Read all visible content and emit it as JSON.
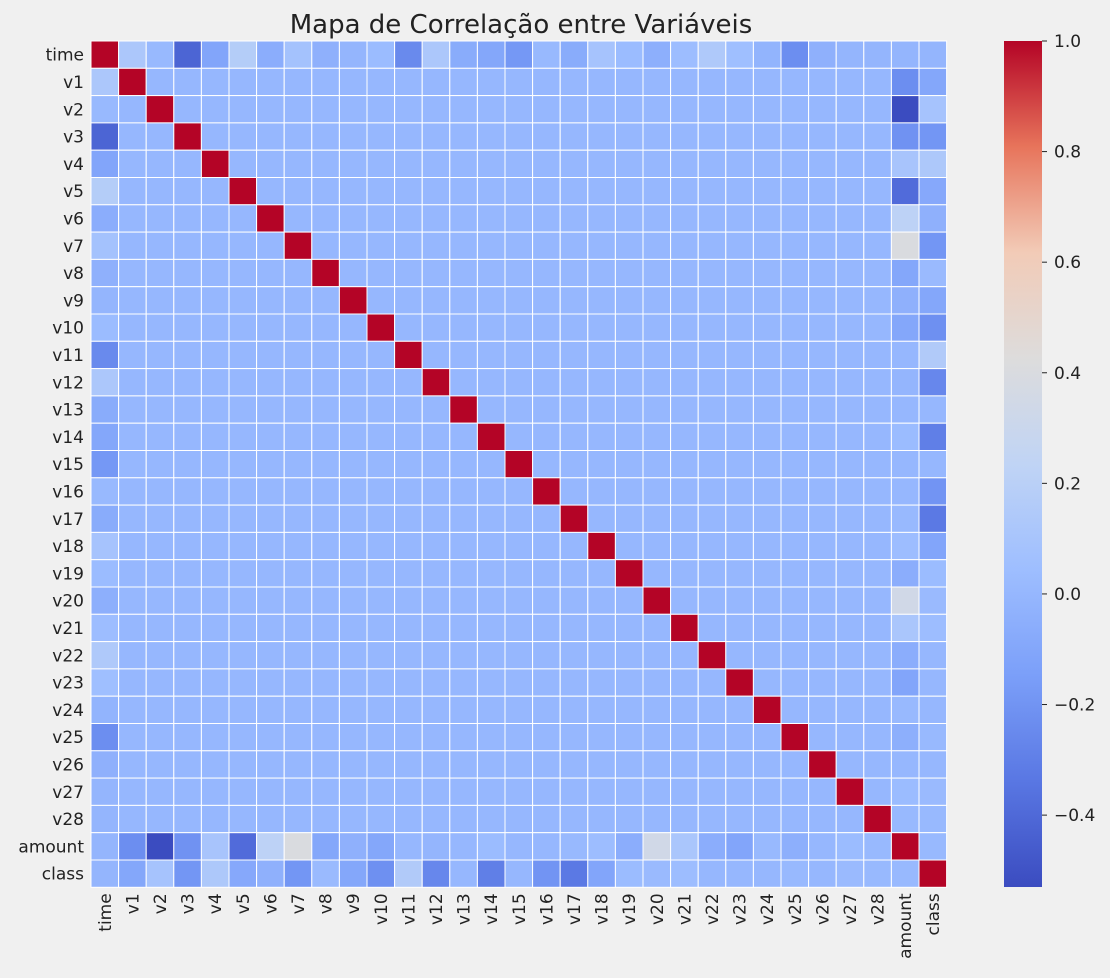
{
  "chart_data": {
    "type": "heatmap",
    "title": "Mapa de Correlação entre Variáveis",
    "xlabel": "",
    "ylabel": "",
    "labels": [
      "time",
      "v1",
      "v2",
      "v3",
      "v4",
      "v5",
      "v6",
      "v7",
      "v8",
      "v9",
      "v10",
      "v11",
      "v12",
      "v13",
      "v14",
      "v15",
      "v16",
      "v17",
      "v18",
      "v19",
      "v20",
      "v21",
      "v22",
      "v23",
      "v24",
      "v25",
      "v26",
      "v27",
      "v28",
      "amount",
      "class"
    ],
    "colormap": "coolwarm",
    "vmin": -0.53,
    "vmax": 1.0,
    "colorbar_ticks": [
      "1.0",
      "0.8",
      "0.6",
      "0.4",
      "0.2",
      "0.0",
      "−0.2",
      "−0.4"
    ],
    "colorbar_tick_values": [
      1.0,
      0.8,
      0.6,
      0.4,
      0.2,
      0.0,
      -0.2,
      -0.4
    ],
    "grid_color": "#ffffff",
    "time_row": [
      1,
      0.12,
      0.01,
      -0.42,
      -0.11,
      0.17,
      -0.06,
      0.08,
      -0.04,
      -0.01,
      0.03,
      -0.25,
      0.12,
      -0.07,
      -0.1,
      -0.18,
      0.01,
      -0.07,
      0.09,
      0.03,
      -0.05,
      0.04,
      0.14,
      0.05,
      -0.02,
      -0.23,
      -0.04,
      -0.01,
      -0.01,
      -0.01,
      -0.01
    ],
    "amount_row": [
      -0.01,
      -0.23,
      -0.53,
      -0.21,
      0.1,
      -0.39,
      0.22,
      0.4,
      -0.1,
      -0.04,
      -0.1,
      0,
      -0.01,
      0,
      0.03,
      0,
      0,
      0.01,
      0.04,
      -0.06,
      0.34,
      0.11,
      -0.06,
      -0.11,
      0.01,
      -0.05,
      0,
      0.03,
      0.01,
      1,
      0.01
    ],
    "class_row": [
      -0.01,
      -0.1,
      0.09,
      -0.19,
      0.13,
      -0.09,
      -0.04,
      -0.19,
      0.02,
      -0.1,
      -0.22,
      0.15,
      -0.26,
      0,
      -0.3,
      0,
      -0.2,
      -0.33,
      -0.11,
      0.03,
      0.02,
      0.04,
      0,
      0,
      0,
      0.01,
      0,
      0.02,
      0.01,
      0.01,
      1
    ]
  }
}
